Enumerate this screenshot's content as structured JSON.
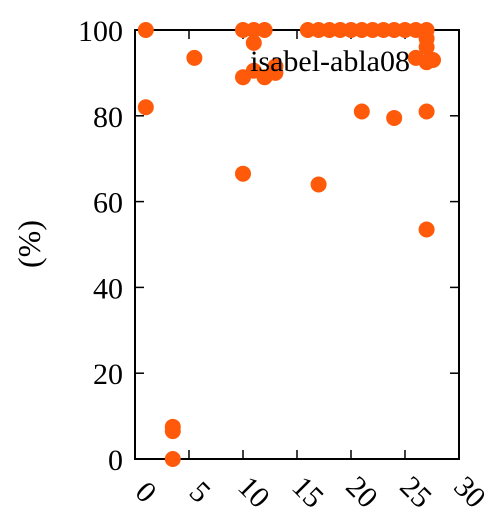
{
  "chart_data": {
    "type": "scatter",
    "title": "",
    "xlabel": "",
    "ylabel": "(%)",
    "xlim": [
      0,
      30
    ],
    "ylim": [
      0,
      100
    ],
    "xticks": [
      "0",
      "5",
      "10",
      "15",
      "20",
      "25",
      "30"
    ],
    "yticks": [
      "0",
      "20",
      "40",
      "60",
      "80",
      "100"
    ],
    "grid": false,
    "legend_position": "top-right",
    "series": [
      {
        "name": "isabel-abla08",
        "color": "#ff5a0a",
        "points": [
          {
            "x": 1,
            "y": 100
          },
          {
            "x": 1,
            "y": 82
          },
          {
            "x": 3.5,
            "y": 0
          },
          {
            "x": 3.5,
            "y": 6.5
          },
          {
            "x": 3.5,
            "y": 7.5
          },
          {
            "x": 5.5,
            "y": 93.5
          },
          {
            "x": 10,
            "y": 100
          },
          {
            "x": 10,
            "y": 89
          },
          {
            "x": 10,
            "y": 66.5
          },
          {
            "x": 11,
            "y": 100
          },
          {
            "x": 11,
            "y": 97
          },
          {
            "x": 11,
            "y": 90.5
          },
          {
            "x": 12,
            "y": 100
          },
          {
            "x": 12,
            "y": 89
          },
          {
            "x": 13,
            "y": 90
          },
          {
            "x": 13,
            "y": 91.5
          },
          {
            "x": 16,
            "y": 100
          },
          {
            "x": 17,
            "y": 100
          },
          {
            "x": 17,
            "y": 64
          },
          {
            "x": 18,
            "y": 100
          },
          {
            "x": 19,
            "y": 100
          },
          {
            "x": 20,
            "y": 100
          },
          {
            "x": 21,
            "y": 100
          },
          {
            "x": 21,
            "y": 81
          },
          {
            "x": 22,
            "y": 100
          },
          {
            "x": 23,
            "y": 100
          },
          {
            "x": 24,
            "y": 100
          },
          {
            "x": 24,
            "y": 79.5
          },
          {
            "x": 25,
            "y": 100
          },
          {
            "x": 26,
            "y": 100
          },
          {
            "x": 26,
            "y": 93.5
          },
          {
            "x": 27,
            "y": 100
          },
          {
            "x": 27,
            "y": 98
          },
          {
            "x": 27,
            "y": 96
          },
          {
            "x": 27,
            "y": 92.5
          },
          {
            "x": 27,
            "y": 81
          },
          {
            "x": 27,
            "y": 53.5
          }
        ]
      }
    ]
  }
}
